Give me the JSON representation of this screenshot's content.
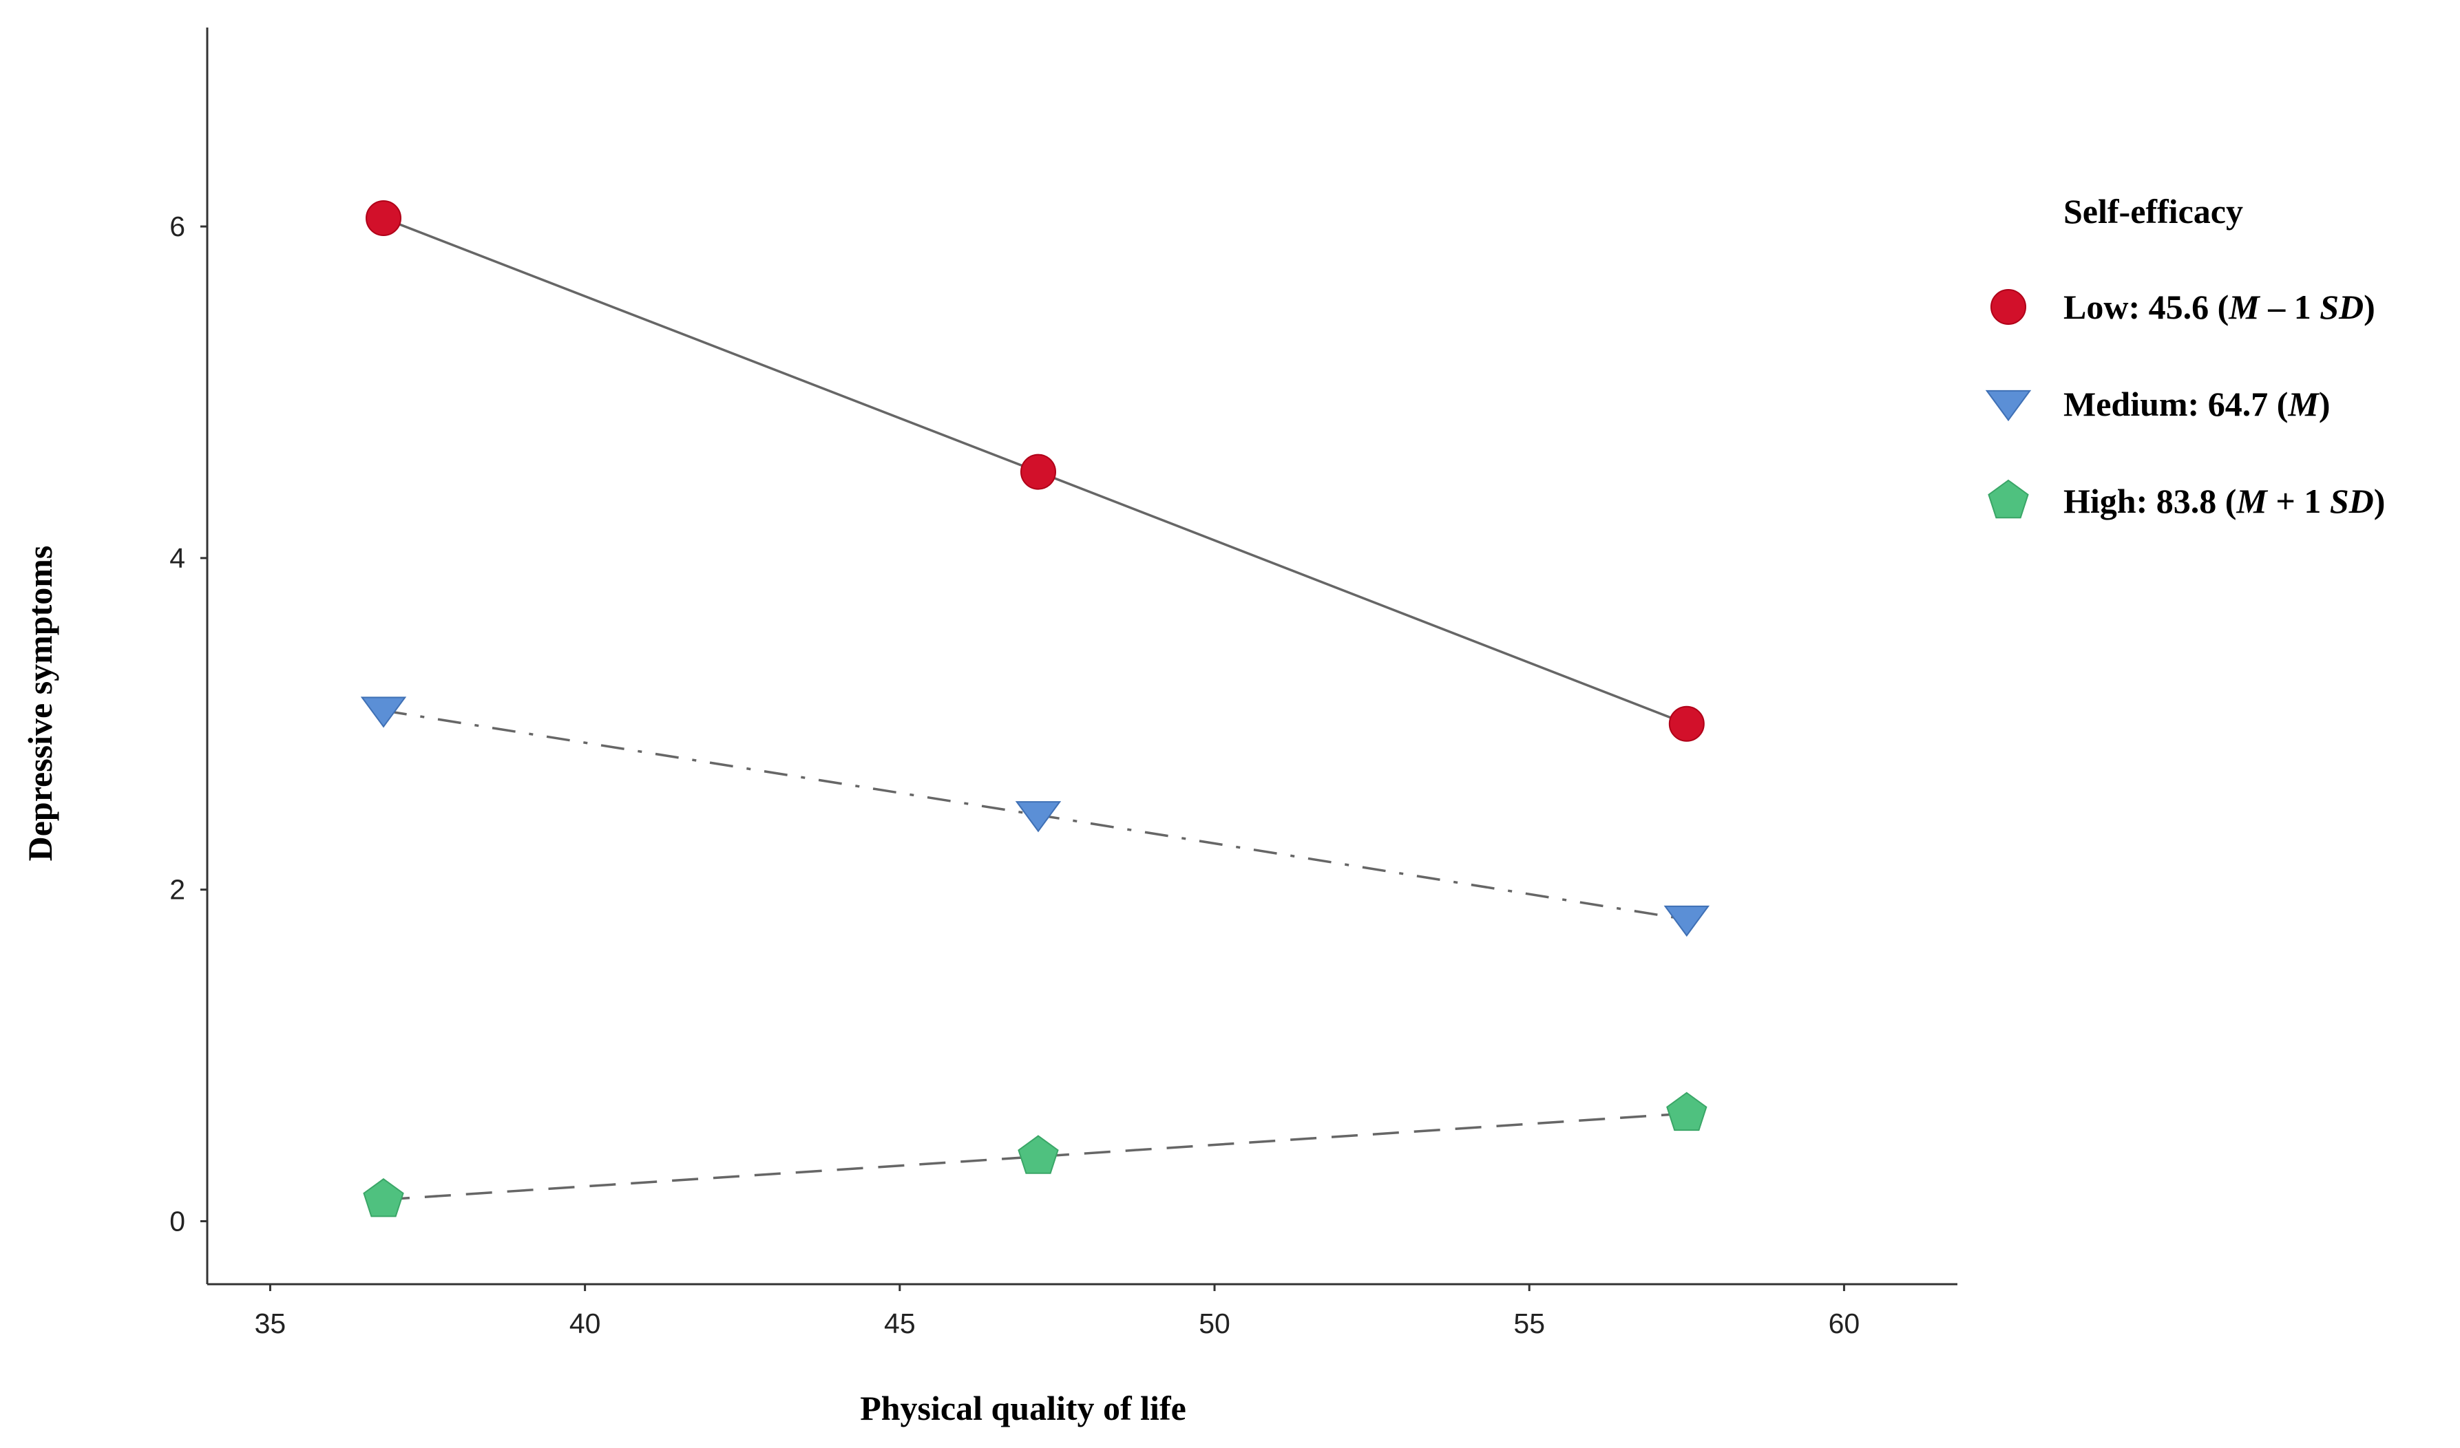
{
  "chart_data": {
    "type": "line",
    "xlabel": "Physical quality of life",
    "ylabel": "Depressive symptoms",
    "xlim": [
      34,
      61.8
    ],
    "ylim": [
      -0.38,
      7.2
    ],
    "xticks": [
      35,
      40,
      45,
      50,
      55,
      60
    ],
    "yticks": [
      0,
      2,
      4,
      6
    ],
    "x": [
      36.8,
      47.2,
      57.5
    ],
    "grid": false,
    "legend": {
      "title": "Self-efficacy",
      "placement": "right"
    },
    "series": [
      {
        "name": "Low: 45.6 (M – 1 SD)",
        "label_parts": [
          {
            "text": "Low: 45.6 (",
            "italic": false
          },
          {
            "text": "M",
            "italic": true
          },
          {
            "text": " – 1 ",
            "italic": false
          },
          {
            "text": "SD",
            "italic": true
          },
          {
            "text": ")",
            "italic": false
          }
        ],
        "values": [
          6.05,
          4.52,
          3.0
        ],
        "marker": "circle",
        "color": "#d2102a",
        "line_style": "solid"
      },
      {
        "name": "Medium: 64.7 (M)",
        "label_parts": [
          {
            "text": "Medium: 64.7 (",
            "italic": false
          },
          {
            "text": "M",
            "italic": true
          },
          {
            "text": ")",
            "italic": false
          }
        ],
        "values": [
          3.08,
          2.45,
          1.82
        ],
        "marker": "triangle-down",
        "color": "#5b8fd6",
        "line_style": "dash-dot"
      },
      {
        "name": "High: 83.8 (M + 1 SD)",
        "label_parts": [
          {
            "text": "High: 83.8 (",
            "italic": false
          },
          {
            "text": "M",
            "italic": true
          },
          {
            "text": " + 1 ",
            "italic": false
          },
          {
            "text": "SD",
            "italic": true
          },
          {
            "text": ")",
            "italic": false
          }
        ],
        "values": [
          0.13,
          0.39,
          0.65
        ],
        "marker": "pentagon",
        "color": "#4fc17f",
        "line_style": "dashed"
      }
    ]
  }
}
